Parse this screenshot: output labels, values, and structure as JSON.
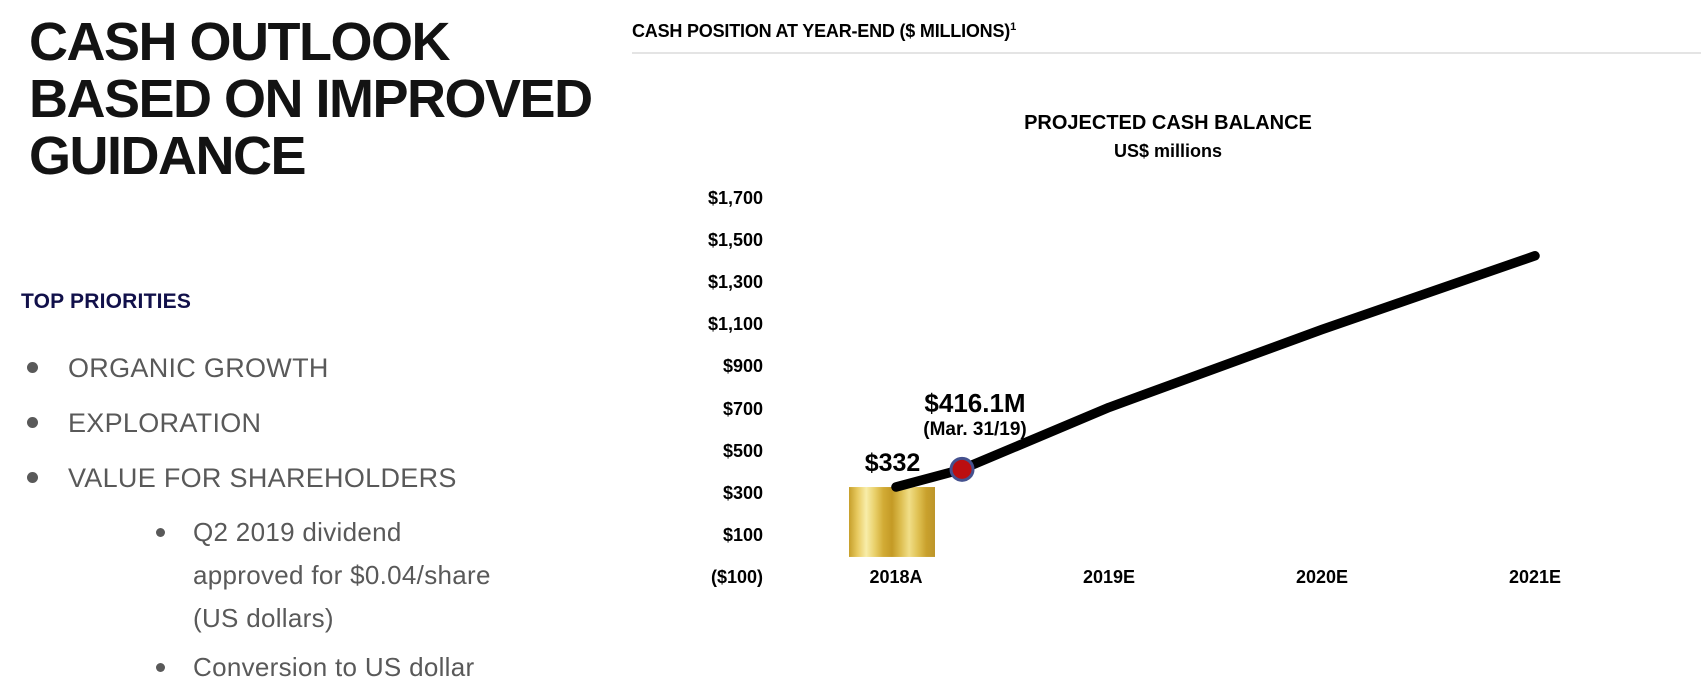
{
  "slide": {
    "title_lines": [
      "CASH OUTLOOK",
      "BASED ON IMPROVED",
      "GUIDANCE"
    ]
  },
  "priorities": {
    "heading": "TOP PRIORITIES",
    "items": [
      "ORGANIC GROWTH",
      "EXPLORATION",
      "VALUE FOR SHAREHOLDERS"
    ],
    "sub_items": [
      "Q2 2019 dividend approved for $0.04/share (US dollars)",
      "Conversion to US dollar"
    ]
  },
  "chart": {
    "header": "CASH POSITION AT YEAR-END ($ MILLIONS)",
    "header_footnote_marker": "1",
    "title": "PROJECTED CASH BALANCE",
    "subtitle": "US$ millions",
    "annotations": {
      "start_value": "$332",
      "interim_value": "$416.1M",
      "interim_date": "(Mar. 31/19)"
    }
  },
  "chart_data": {
    "type": "line",
    "title": "PROJECTED CASH BALANCE",
    "subtitle": "US$ millions",
    "xlabel": "",
    "ylabel": "US$ millions",
    "grid": false,
    "legend_position": "none",
    "categories": [
      "2018A",
      "2019E",
      "2020E",
      "2021E"
    ],
    "y_axis": {
      "min": -100,
      "max": 1700,
      "step": 200
    },
    "y_ticks": [
      {
        "label": "$1,700",
        "value": 1700
      },
      {
        "label": "$1,500",
        "value": 1500
      },
      {
        "label": "$1,300",
        "value": 1300
      },
      {
        "label": "$1,100",
        "value": 1100
      },
      {
        "label": "$900",
        "value": 900
      },
      {
        "label": "$700",
        "value": 700
      },
      {
        "label": "$500",
        "value": 500
      },
      {
        "label": "$300",
        "value": 300
      },
      {
        "label": "$100",
        "value": 100
      },
      {
        "label": "($100)",
        "value": -100
      }
    ],
    "series": [
      {
        "name": "Projected cash balance",
        "points": [
          {
            "x_label": "2018A",
            "x_index": 0,
            "value": 332,
            "label": "$332"
          },
          {
            "x_label": "Mar. 31/19",
            "x_index": 0.31,
            "value": 416.1,
            "label": "$416.1M",
            "marker": "red-dot"
          },
          {
            "x_label": "2019E",
            "x_index": 1,
            "value": 710,
            "estimated": true
          },
          {
            "x_label": "2020E",
            "x_index": 2,
            "value": 1080,
            "estimated": true
          },
          {
            "x_label": "2021E",
            "x_index": 3,
            "value": 1430,
            "estimated": true
          }
        ]
      }
    ],
    "bar": {
      "x_label": "2018A",
      "value": 332,
      "base": 0,
      "style": "gold-bullion"
    }
  },
  "colors": {
    "title_black": "#131313",
    "accent_navy": "#11104a",
    "body_gray": "#595959",
    "rule_gray": "#e4e4e4",
    "line_black": "#000000",
    "dot_fill": "#bb0e10",
    "dot_ring": "#44518e",
    "gold_stops": [
      "#c79f2b",
      "#e8cb61",
      "#f8eda9",
      "#e9d06a",
      "#d2ab35",
      "#c49a25",
      "#dcbd4e",
      "#f1de88",
      "#e0c254",
      "#c9a12d",
      "#bd952a"
    ]
  }
}
